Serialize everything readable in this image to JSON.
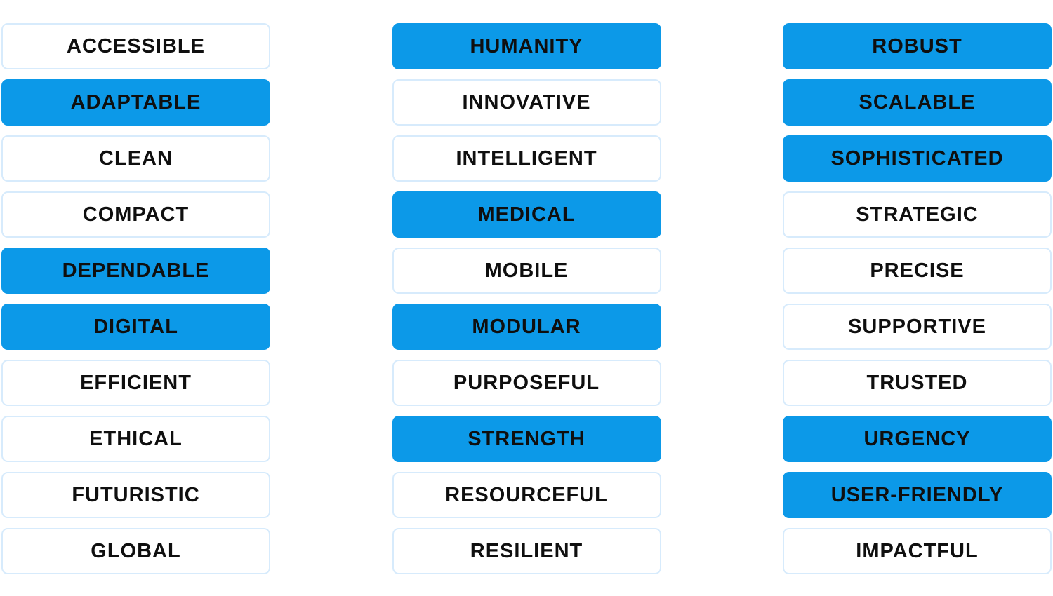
{
  "colors": {
    "selected_fill": "#0c99e8",
    "unselected_border": "#d7ebfc",
    "text": "#0f0f0f",
    "background": "#ffffff"
  },
  "columns": [
    {
      "items": [
        {
          "label": "ACCESSIBLE",
          "selected": false
        },
        {
          "label": "ADAPTABLE",
          "selected": true
        },
        {
          "label": "CLEAN",
          "selected": false
        },
        {
          "label": "COMPACT",
          "selected": false
        },
        {
          "label": "DEPENDABLE",
          "selected": true
        },
        {
          "label": "DIGITAL",
          "selected": true
        },
        {
          "label": "EFFICIENT",
          "selected": false
        },
        {
          "label": "ETHICAL",
          "selected": false
        },
        {
          "label": "FUTURISTIC",
          "selected": false
        },
        {
          "label": "GLOBAL",
          "selected": false
        }
      ]
    },
    {
      "items": [
        {
          "label": "HUMANITY",
          "selected": true
        },
        {
          "label": "INNOVATIVE",
          "selected": false
        },
        {
          "label": "INTELLIGENT",
          "selected": false
        },
        {
          "label": "MEDICAL",
          "selected": true
        },
        {
          "label": "MOBILE",
          "selected": false
        },
        {
          "label": "MODULAR",
          "selected": true
        },
        {
          "label": "PURPOSEFUL",
          "selected": false
        },
        {
          "label": "STRENGTH",
          "selected": true
        },
        {
          "label": "RESOURCEFUL",
          "selected": false
        },
        {
          "label": "RESILIENT",
          "selected": false
        }
      ]
    },
    {
      "items": [
        {
          "label": "ROBUST",
          "selected": true
        },
        {
          "label": "SCALABLE",
          "selected": true
        },
        {
          "label": "SOPHISTICATED",
          "selected": true
        },
        {
          "label": "STRATEGIC",
          "selected": false
        },
        {
          "label": "PRECISE",
          "selected": false
        },
        {
          "label": "SUPPORTIVE",
          "selected": false
        },
        {
          "label": "TRUSTED",
          "selected": false
        },
        {
          "label": "URGENCY",
          "selected": true
        },
        {
          "label": "USER-FRIENDLY",
          "selected": true
        },
        {
          "label": "IMPACTFUL",
          "selected": false
        }
      ]
    }
  ]
}
